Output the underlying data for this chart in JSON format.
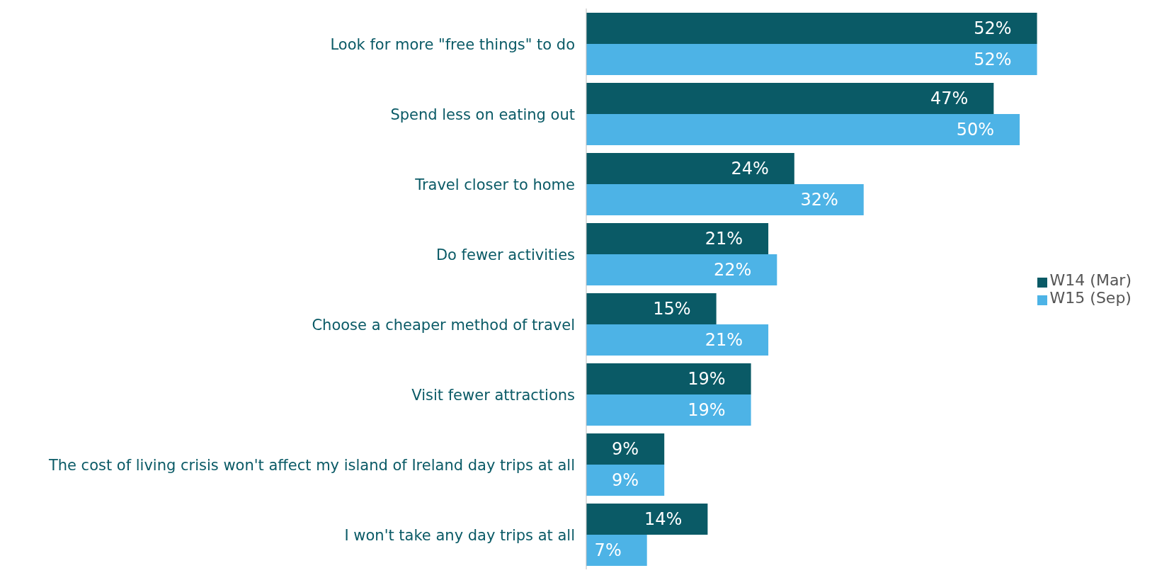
{
  "chart_data": {
    "type": "bar",
    "orientation": "horizontal",
    "categories": [
      "Look for more \"free things\" to do",
      "Spend less on eating out",
      "Travel closer to home",
      "Do fewer activities",
      "Choose a cheaper method of travel",
      "Visit fewer attractions",
      "The cost of living crisis won't affect my island of Ireland day trips at all",
      "I won't take any day trips at all"
    ],
    "series": [
      {
        "name": "W14 (Mar)",
        "color": "#0a5a66",
        "values": [
          52,
          47,
          24,
          21,
          15,
          19,
          9,
          14
        ],
        "value_labels": [
          "52%",
          "47%",
          "24%",
          "21%",
          "15%",
          "19%",
          "9%",
          "14%"
        ]
      },
      {
        "name": "W15 (Sep)",
        "color": "#4db3e6",
        "values": [
          52,
          50,
          32,
          22,
          21,
          19,
          9,
          7
        ],
        "value_labels": [
          "52%",
          "50%",
          "32%",
          "22%",
          "21%",
          "19%",
          "9%",
          "7%"
        ]
      }
    ],
    "legend": "right",
    "grid": false
  }
}
